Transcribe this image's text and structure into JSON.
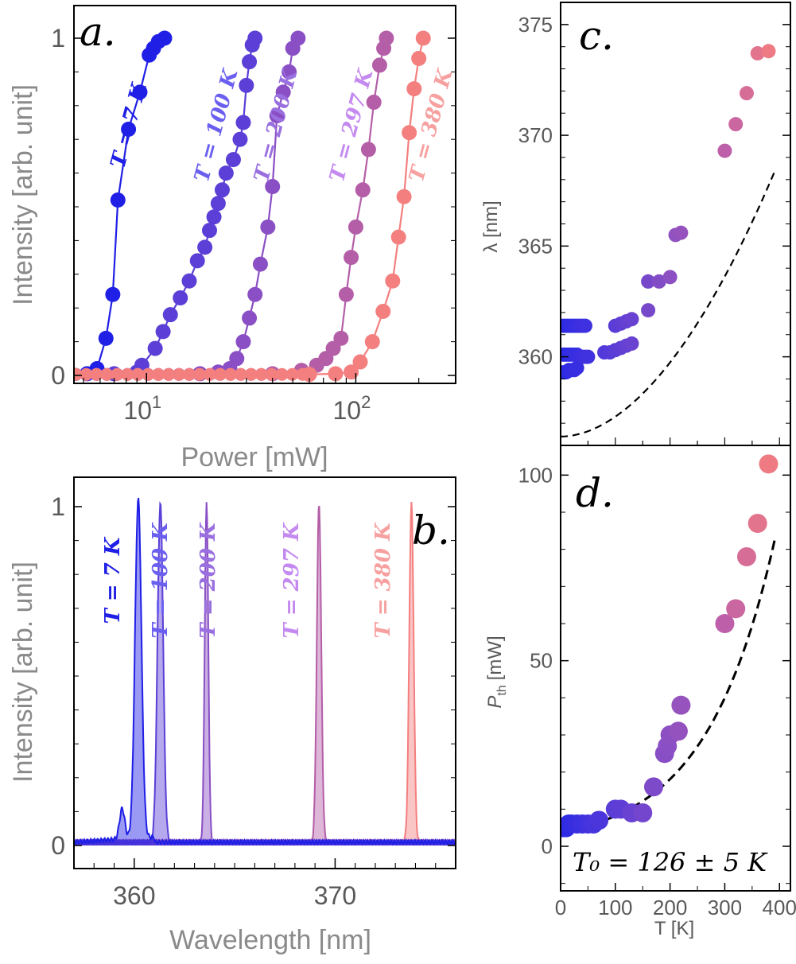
{
  "colors": {
    "T7": "#1f1fe6",
    "T100": "#5b3fd6",
    "T200": "#8a4fc4",
    "T297": "#b45ea8",
    "T380": "#f47f7f",
    "label7": "#1f1fe6",
    "label100": "#6b5ff0",
    "label200": "#9a6fe0",
    "label297": "#c48af0",
    "label380": "#f7a0a0"
  },
  "chart_data": [
    {
      "panel": "a.",
      "type": "scatter",
      "xlabel": "Power [mW]",
      "ylabel": "Intensity [arb. unit]",
      "xscale": "log",
      "xlim": [
        4.5,
        300
      ],
      "ylim": [
        0,
        1
      ],
      "xticks": [
        {
          "v": 10,
          "base": "10",
          "exp": "1"
        },
        {
          "v": 100,
          "base": "10",
          "exp": "2"
        }
      ],
      "yticks": [
        {
          "v": 0,
          "label": "0"
        },
        {
          "v": 1,
          "label": "1"
        }
      ],
      "series": [
        {
          "name": "T = 7 K",
          "color_key": "T7",
          "label_key": "label7",
          "x": [
            5.2,
            5.8,
            6.4,
            6.9,
            7.3,
            8.2,
            9.3,
            10.3,
            10.8,
            11.4,
            12.2
          ],
          "y": [
            0.005,
            0.02,
            0.11,
            0.24,
            0.52,
            0.73,
            0.84,
            0.95,
            0.97,
            0.99,
            1.0
          ]
        },
        {
          "name": "T = 100 K",
          "color_key": "T100",
          "label_key": "label100",
          "x": [
            7,
            9,
            9.5,
            11,
            12,
            13,
            14.5,
            16,
            17.5,
            19,
            20,
            21,
            22,
            23,
            24,
            26,
            28,
            29,
            30,
            31,
            32,
            33
          ],
          "y": [
            0.005,
            0.01,
            0.03,
            0.08,
            0.13,
            0.18,
            0.23,
            0.28,
            0.34,
            0.38,
            0.43,
            0.47,
            0.51,
            0.55,
            0.6,
            0.64,
            0.7,
            0.75,
            0.86,
            0.93,
            0.98,
            1.0
          ]
        },
        {
          "name": "T = 200 K",
          "color_key": "T200",
          "label_key": "label200",
          "x": [
            18,
            22,
            25,
            27,
            29,
            31,
            33,
            35,
            38,
            40,
            42,
            45,
            48,
            50,
            53
          ],
          "y": [
            0.005,
            0.01,
            0.02,
            0.05,
            0.1,
            0.17,
            0.24,
            0.33,
            0.44,
            0.56,
            0.77,
            0.84,
            0.9,
            0.97,
            1.0
          ]
        },
        {
          "name": "T = 297 K",
          "color_key": "T297",
          "label_key": "label297",
          "x": [
            40,
            55,
            65,
            72,
            78,
            85,
            90,
            95,
            100,
            108,
            115,
            122,
            130,
            136,
            140
          ],
          "y": [
            0.005,
            0.015,
            0.03,
            0.05,
            0.08,
            0.11,
            0.24,
            0.35,
            0.44,
            0.55,
            0.67,
            0.81,
            0.92,
            0.97,
            1.0
          ]
        },
        {
          "name": "T = 380 K",
          "color_key": "T380",
          "label_key": "label380",
          "x": [
            60,
            80,
            95,
            105,
            120,
            135,
            150,
            160,
            170,
            180,
            190,
            200,
            210
          ],
          "y": [
            0.003,
            0.005,
            0.01,
            0.04,
            0.1,
            0.19,
            0.28,
            0.41,
            0.53,
            0.72,
            0.85,
            0.94,
            1.0
          ]
        }
      ]
    },
    {
      "panel": "b.",
      "type": "line",
      "xlabel": "Wavelength [nm]",
      "ylabel": "Intensity [arb. unit]",
      "xlim": [
        357,
        376
      ],
      "ylim": [
        0,
        1
      ],
      "xticks": [
        {
          "v": 360,
          "label": "360"
        },
        {
          "v": 370,
          "label": "370"
        }
      ],
      "yticks": [
        {
          "v": 0,
          "label": "0"
        },
        {
          "v": 1,
          "label": "1"
        }
      ],
      "series": [
        {
          "name": "T = 7 K",
          "color_key": "T7",
          "label_key": "label7",
          "peak": 360.2,
          "width": 0.16,
          "side_peak": 359.4,
          "side_amp": 0.09
        },
        {
          "name": "T = 100 K",
          "color_key": "T100",
          "label_key": "label100",
          "peak": 361.3,
          "width": 0.14
        },
        {
          "name": "T = 200 K",
          "color_key": "T200",
          "label_key": "label200",
          "peak": 363.6,
          "width": 0.09
        },
        {
          "name": "T = 297 K",
          "color_key": "T297",
          "label_key": "label297",
          "peak": 369.2,
          "width": 0.11
        },
        {
          "name": "T = 380 K",
          "color_key": "T380",
          "label_key": "label380",
          "peak": 373.8,
          "width": 0.11
        }
      ]
    },
    {
      "panel": "c.",
      "type": "scatter",
      "xlabel": "",
      "ylabel": "λ [nm]",
      "xlim": [
        0,
        420
      ],
      "ylim": [
        356,
        376
      ],
      "yticks": [
        {
          "v": 360,
          "label": "360"
        },
        {
          "v": 365,
          "label": "365"
        },
        {
          "v": 370,
          "label": "370"
        },
        {
          "v": 375,
          "label": "375"
        }
      ],
      "x": [
        5,
        10,
        15,
        20,
        25,
        30,
        35,
        40,
        45,
        5,
        10,
        15,
        20,
        25,
        30,
        5,
        10,
        15,
        20,
        25,
        30,
        35,
        40,
        45,
        50,
        80,
        90,
        100,
        110,
        120,
        130,
        100,
        110,
        120,
        130,
        160,
        160,
        180,
        200,
        210,
        220,
        300,
        320,
        340,
        360,
        380
      ],
      "y": [
        361.4,
        361.4,
        361.4,
        361.4,
        361.4,
        361.4,
        361.4,
        361.4,
        361.4,
        360.1,
        360.1,
        360.1,
        360.1,
        360.1,
        360.1,
        359.3,
        359.3,
        359.4,
        359.4,
        359.4,
        359.5,
        360,
        360,
        360,
        360,
        360.2,
        360.2,
        360.3,
        360.4,
        360.5,
        360.6,
        361.4,
        361.5,
        361.6,
        361.7,
        362.1,
        363.4,
        363.4,
        363.6,
        365.5,
        365.6,
        369.3,
        370.5,
        371.9,
        373.7,
        373.8
      ],
      "fit": {
        "style": "dashed",
        "x0": 0,
        "y0": 356.4,
        "x1": 390,
        "y1": 368.3
      }
    },
    {
      "panel": "d.",
      "type": "scatter",
      "xlabel": "T [K]",
      "ylabel_main": "P",
      "ylabel_sub": "th",
      "ylabel_unit": "[mW]",
      "xlim": [
        0,
        420
      ],
      "ylim": [
        -12,
        108
      ],
      "xticks": [
        {
          "v": 0,
          "label": "0"
        },
        {
          "v": 100,
          "label": "100"
        },
        {
          "v": 200,
          "label": "200"
        },
        {
          "v": 300,
          "label": "300"
        },
        {
          "v": 400,
          "label": "400"
        }
      ],
      "yticks": [
        {
          "v": 0,
          "label": "0"
        },
        {
          "v": 50,
          "label": "50"
        },
        {
          "v": 100,
          "label": "100"
        }
      ],
      "x": [
        5,
        10,
        15,
        20,
        30,
        40,
        50,
        60,
        70,
        100,
        110,
        130,
        150,
        170,
        190,
        195,
        200,
        215,
        220,
        300,
        320,
        340,
        360,
        380
      ],
      "y": [
        5,
        5,
        6,
        6,
        6,
        6,
        6,
        6,
        7,
        10,
        10,
        9,
        9,
        16,
        25,
        27,
        30,
        31,
        38,
        60,
        64,
        78,
        87,
        103
      ],
      "fit_T0": 126,
      "fit_P0": 3.7,
      "annotation": "T₀ = 126 ± 5 K"
    }
  ]
}
